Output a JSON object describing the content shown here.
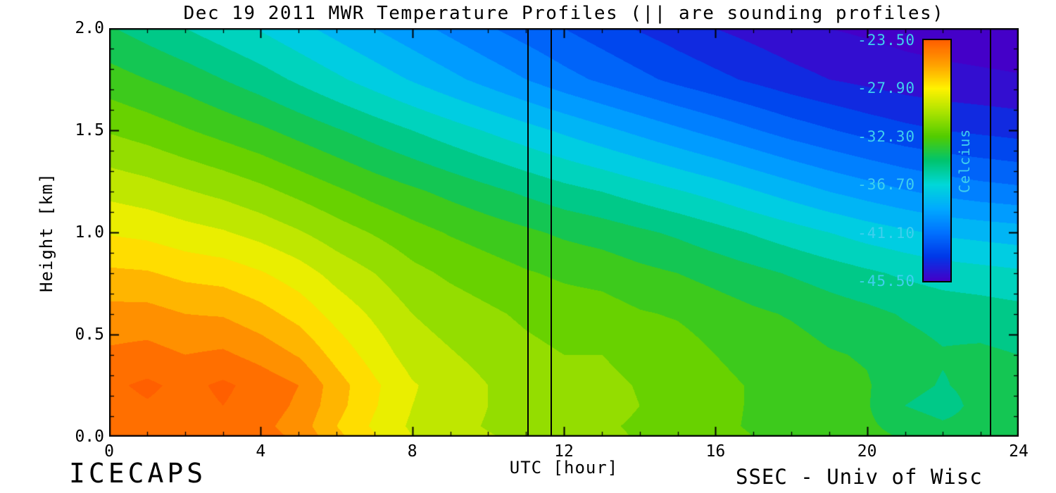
{
  "footer": {
    "left": "ICECAPS",
    "right": "SSEC - Univ of Wisc"
  },
  "chart_data": {
    "type": "heatmap",
    "title": "Dec 19 2011 MWR Temperature Profiles (|| are sounding profiles)",
    "xlabel": "UTC [hour]",
    "ylabel": "Height [km]",
    "xlim": [
      0,
      24
    ],
    "ylim": [
      0,
      2
    ],
    "x_ticks": [
      0,
      4,
      8,
      12,
      16,
      20,
      24
    ],
    "x_tick_labels": [
      "0",
      "4",
      "8",
      "12",
      "16",
      "20",
      "24"
    ],
    "x_minor_step": 1,
    "y_ticks": [
      0,
      0.5,
      1,
      1.5,
      2
    ],
    "y_tick_labels": [
      "0.0",
      "0.5",
      "1.0",
      "1.5",
      "2.0"
    ],
    "y_minor_step": 0.1,
    "sounding_profile_times_utc": [
      11.05,
      11.67,
      23.26
    ],
    "contour_step_c": 1.1,
    "time_hours": [
      0,
      1,
      2,
      3,
      4,
      5,
      6,
      7,
      8,
      9,
      10,
      11,
      12,
      13,
      14,
      15,
      16,
      17,
      18,
      19,
      20,
      21,
      22,
      23,
      24
    ],
    "height_km": [
      0,
      0.05,
      0.15,
      0.25,
      0.4,
      0.6,
      0.8,
      1.0,
      1.2,
      1.5,
      1.75,
      2.0
    ],
    "temperature_c": [
      [
        -23.8,
        -23.8,
        -24.0,
        -23.8,
        -24.2,
        -24.8,
        -26.5,
        -27.8,
        -29.0,
        -29.5,
        -30.0,
        -30.4,
        -30.8,
        -30.9,
        -31.3,
        -31.5,
        -32.0,
        -32.3,
        -32.5,
        -32.9,
        -33.1,
        -33.5,
        -33.9,
        -34.0,
        -34.1
      ],
      [
        -24.0,
        -23.9,
        -24.2,
        -24.0,
        -24.3,
        -25.1,
        -26.8,
        -28.1,
        -29.2,
        -29.7,
        -30.2,
        -30.6,
        -31.0,
        -31.0,
        -31.4,
        -31.6,
        -32.1,
        -32.4,
        -32.6,
        -33.0,
        -33.2,
        -33.8,
        -34.3,
        -34.1,
        -34.2
      ],
      [
        -23.9,
        -23.6,
        -23.9,
        -23.5,
        -24.0,
        -24.8,
        -26.4,
        -27.8,
        -29.0,
        -29.5,
        -30.1,
        -30.5,
        -30.8,
        -30.7,
        -31.2,
        -31.4,
        -32.0,
        -32.4,
        -32.5,
        -33.0,
        -33.3,
        -34.5,
        -35.0,
        -34.1,
        -34.3
      ],
      [
        -23.7,
        -23.3,
        -23.8,
        -23.3,
        -23.9,
        -24.6,
        -26.3,
        -27.7,
        -28.9,
        -29.5,
        -30.1,
        -30.5,
        -30.8,
        -30.8,
        -31.3,
        -31.4,
        -32.0,
        -32.4,
        -32.6,
        -33.1,
        -33.3,
        -34.1,
        -34.6,
        -34.1,
        -34.3
      ],
      [
        -24.4,
        -24.2,
        -24.6,
        -24.4,
        -25.0,
        -25.8,
        -27.2,
        -28.4,
        -29.5,
        -30.0,
        -30.5,
        -30.9,
        -31.2,
        -31.2,
        -31.7,
        -31.8,
        -32.3,
        -32.7,
        -32.9,
        -33.3,
        -33.5,
        -34.0,
        -34.4,
        -34.3,
        -34.5
      ],
      [
        -25.3,
        -25.3,
        -25.7,
        -25.8,
        -26.4,
        -27.2,
        -28.3,
        -29.2,
        -30.1,
        -30.6,
        -31.0,
        -31.4,
        -31.7,
        -31.8,
        -32.2,
        -32.4,
        -32.8,
        -33.2,
        -33.5,
        -33.9,
        -34.2,
        -34.6,
        -34.9,
        -35.0,
        -35.2
      ],
      [
        -26.6,
        -26.7,
        -27.1,
        -27.3,
        -27.8,
        -28.5,
        -29.4,
        -30.1,
        -30.9,
        -31.4,
        -31.8,
        -32.2,
        -32.5,
        -32.7,
        -33.1,
        -33.4,
        -33.8,
        -34.2,
        -34.6,
        -35.0,
        -35.4,
        -35.8,
        -36.1,
        -36.3,
        -36.5
      ],
      [
        -28.0,
        -28.2,
        -28.6,
        -28.9,
        -29.4,
        -30.0,
        -30.7,
        -31.3,
        -31.9,
        -32.4,
        -32.8,
        -33.2,
        -33.6,
        -33.9,
        -34.3,
        -34.7,
        -35.2,
        -35.7,
        -36.2,
        -36.7,
        -37.2,
        -37.6,
        -38.0,
        -38.2,
        -38.4
      ],
      [
        -29.3,
        -29.6,
        -30.0,
        -30.4,
        -30.9,
        -31.5,
        -32.1,
        -32.7,
        -33.2,
        -33.7,
        -34.2,
        -34.7,
        -35.2,
        -35.6,
        -36.1,
        -36.6,
        -37.1,
        -37.7,
        -38.3,
        -38.9,
        -39.4,
        -39.9,
        -40.3,
        -40.6,
        -40.8
      ],
      [
        -31.3,
        -31.7,
        -32.2,
        -32.7,
        -33.2,
        -33.8,
        -34.4,
        -35.0,
        -35.6,
        -36.2,
        -36.8,
        -37.4,
        -38.0,
        -38.6,
        -39.2,
        -39.8,
        -40.4,
        -41.0,
        -41.6,
        -42.1,
        -42.6,
        -43.0,
        -43.3,
        -43.5,
        -43.7
      ],
      [
        -32.9,
        -33.4,
        -33.9,
        -34.5,
        -35.1,
        -35.8,
        -36.5,
        -37.2,
        -37.9,
        -38.6,
        -39.3,
        -40.0,
        -40.7,
        -41.3,
        -41.9,
        -42.5,
        -43.0,
        -43.5,
        -44.0,
        -44.4,
        -44.7,
        -45.0,
        -45.2,
        -45.3,
        -45.4
      ],
      [
        -34.4,
        -35.0,
        -35.6,
        -36.2,
        -36.8,
        -37.5,
        -38.2,
        -38.9,
        -39.6,
        -40.3,
        -41.0,
        -41.6,
        -42.2,
        -42.8,
        -43.4,
        -43.9,
        -44.4,
        -44.8,
        -45.2,
        -45.5,
        -45.7,
        -45.9,
        -46.0,
        -46.1,
        -46.2
      ]
    ],
    "colorbar": {
      "label": "Celcius",
      "ticks": [
        "-23.50",
        "-27.90",
        "-32.30",
        "-36.70",
        "-41.10",
        "-45.50"
      ],
      "max": -23.5,
      "min": -45.5,
      "label_color": "#3FCFEE",
      "stops": [
        [
          0.0,
          "#FF5F00"
        ],
        [
          0.1,
          "#FFA000"
        ],
        [
          0.2,
          "#FFF200"
        ],
        [
          0.3,
          "#AAE300"
        ],
        [
          0.4,
          "#52CC00"
        ],
        [
          0.5,
          "#00C46E"
        ],
        [
          0.6,
          "#00D8D8"
        ],
        [
          0.7,
          "#00AAFF"
        ],
        [
          0.8,
          "#0072FF"
        ],
        [
          0.9,
          "#0038E8"
        ],
        [
          1.0,
          "#4400C8"
        ]
      ]
    }
  }
}
